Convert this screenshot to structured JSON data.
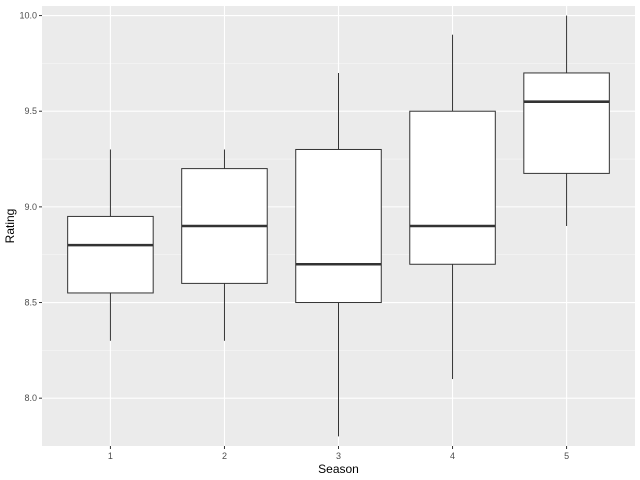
{
  "chart_data": {
    "type": "boxplot",
    "xlabel": "Season",
    "ylabel": "Rating",
    "categories": [
      "1",
      "2",
      "3",
      "4",
      "5"
    ],
    "boxes": [
      {
        "category": "1",
        "whisker_low": 8.3,
        "q1": 8.55,
        "median": 8.8,
        "q3": 8.95,
        "whisker_high": 9.3
      },
      {
        "category": "2",
        "whisker_low": 8.3,
        "q1": 8.6,
        "median": 8.9,
        "q3": 9.2,
        "whisker_high": 9.3
      },
      {
        "category": "3",
        "whisker_low": 7.8,
        "q1": 8.5,
        "median": 8.7,
        "q3": 9.3,
        "whisker_high": 9.7
      },
      {
        "category": "4",
        "whisker_low": 8.1,
        "q1": 8.7,
        "median": 8.9,
        "q3": 9.5,
        "whisker_high": 9.9
      },
      {
        "category": "5",
        "whisker_low": 8.9,
        "q1": 9.175,
        "median": 9.55,
        "q3": 9.7,
        "whisker_high": 10.0
      }
    ],
    "yticks": [
      8.0,
      8.5,
      9.0,
      9.5,
      10.0
    ],
    "ytick_labels": [
      "8.0",
      "8.5",
      "9.0",
      "9.5",
      "10.0"
    ],
    "ylim": [
      7.75,
      10.05
    ],
    "grid": true,
    "colors": {
      "panel_background": "#ebebeb",
      "grid_major": "#ffffff",
      "box_fill": "#ffffff",
      "box_stroke": "#333333"
    }
  }
}
